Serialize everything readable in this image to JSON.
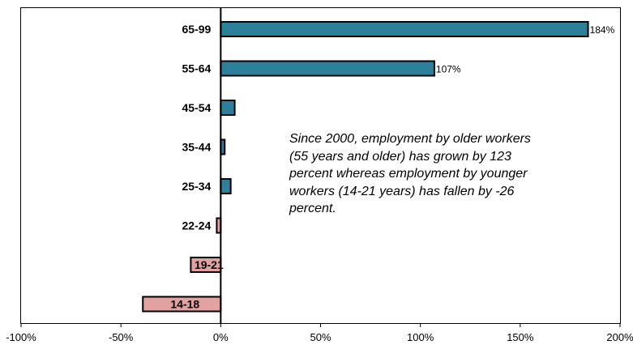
{
  "chart_data": {
    "type": "bar",
    "orientation": "horizontal",
    "categories": [
      "65-99",
      "55-64",
      "45-54",
      "35-44",
      "25-34",
      "22-24",
      "19-21",
      "14-18"
    ],
    "values": [
      184,
      107,
      7,
      2,
      5,
      -2,
      -15,
      -39
    ],
    "value_labels": [
      "184%",
      "107%",
      "",
      "",
      "",
      "",
      "",
      ""
    ],
    "xlim": [
      -100,
      200
    ],
    "xticks": [
      -100,
      -50,
      0,
      50,
      100,
      150,
      200
    ],
    "xtick_labels": [
      "-100%",
      "-50%",
      "0%",
      "50%",
      "100%",
      "150%",
      "200%"
    ],
    "title": "",
    "xlabel": "",
    "ylabel": "",
    "grid": false,
    "colors": {
      "positive": "#2e7f99",
      "negative": "#e3a2a2",
      "outline": "#000000"
    },
    "annotation": "Since 2000, employment by older workers (55 years and older) has grown by 123 percent whereas employment by younger workers (14-21 years) has fallen by -26 percent."
  }
}
